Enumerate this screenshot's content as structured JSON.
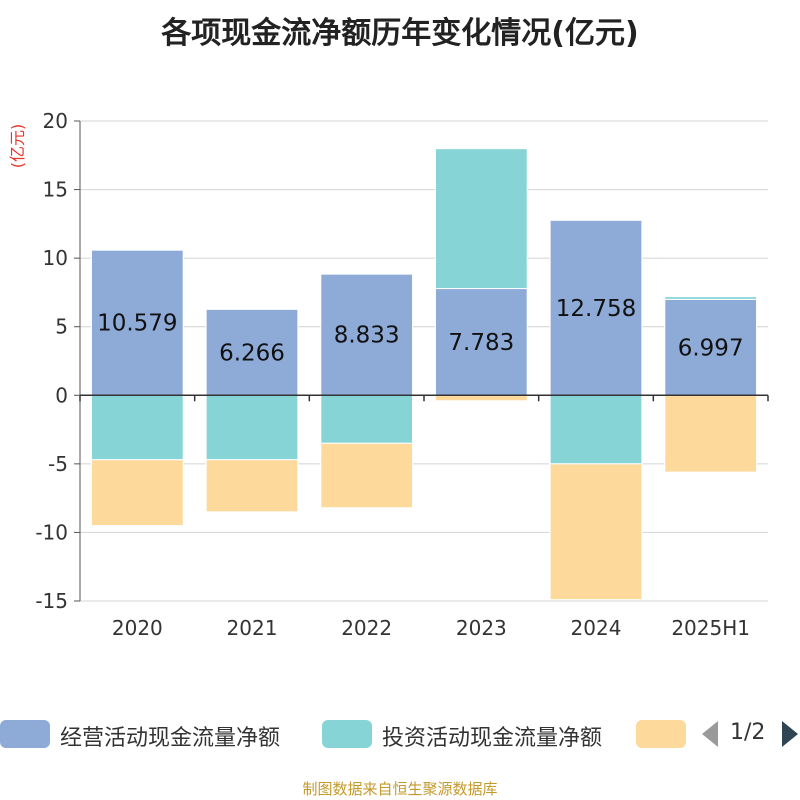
{
  "chart_data": {
    "type": "bar",
    "stacked": true,
    "title": "各项现金流净额历年变化情况(亿元)",
    "ylabel": "(亿元)",
    "categories": [
      "2020",
      "2021",
      "2022",
      "2023",
      "2024",
      "2025H1"
    ],
    "ylim": [
      -15,
      20
    ],
    "yticks": [
      20,
      15,
      10,
      5,
      0,
      -5,
      -10,
      -15
    ],
    "grid": true,
    "legend_position": "bottom",
    "series": [
      {
        "name": "经营活动现金流量净额",
        "color": "#8eabd8",
        "values": [
          10.579,
          6.266,
          8.833,
          7.783,
          12.758,
          6.997
        ],
        "data_labels": [
          "10.579",
          "6.266",
          "8.833",
          "7.783",
          "12.758",
          "6.997"
        ]
      },
      {
        "name": "投资活动现金流量净额",
        "color": "#86d4d6",
        "values": [
          -4.7,
          -4.7,
          -3.5,
          10.2,
          -5.0,
          0.2
        ]
      },
      {
        "name": "",
        "color": "#fdd99b",
        "values": [
          -4.8,
          -3.8,
          -4.7,
          -0.4,
          -9.9,
          -5.6
        ]
      }
    ]
  },
  "legend": {
    "pager": "1/2",
    "prev_icon": "triangle-left-icon",
    "next_icon": "triangle-right-icon"
  },
  "source": "制图数据来自恒生聚源数据库"
}
